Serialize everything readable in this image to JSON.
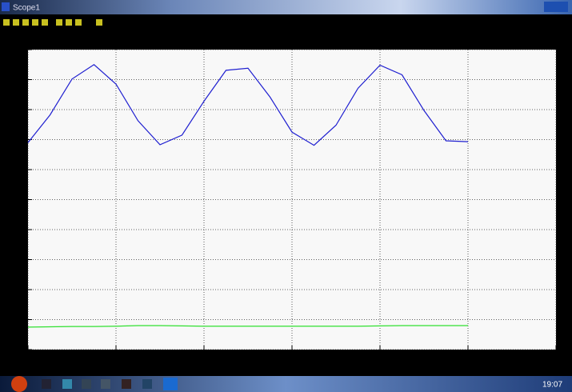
{
  "window": {
    "title": "Scope1"
  },
  "taskbar": {
    "clock": "19:07"
  },
  "chart_data": {
    "type": "line",
    "x": [
      0,
      0.25,
      0.5,
      0.75,
      1,
      1.25,
      1.5,
      1.75,
      2,
      2.25,
      2.5,
      2.75,
      3,
      3.25,
      3.5,
      3.75,
      4,
      4.25,
      4.5,
      4.75,
      5
    ],
    "series": [
      {
        "color": "#2020d0",
        "values": [
          6.9,
          7.82,
          9.02,
          9.5,
          8.85,
          7.63,
          6.83,
          7.15,
          8.28,
          9.31,
          9.38,
          8.42,
          7.25,
          6.81,
          7.48,
          8.71,
          9.48,
          9.16,
          7.97,
          6.96,
          6.93
        ]
      },
      {
        "color": "#30e030",
        "values": [
          0.75,
          0.76,
          0.77,
          0.77,
          0.78,
          0.8,
          0.8,
          0.79,
          0.78,
          0.78,
          0.78,
          0.78,
          0.78,
          0.78,
          0.78,
          0.78,
          0.79,
          0.8,
          0.8,
          0.8,
          0.8
        ]
      }
    ],
    "xlim": [
      0,
      6
    ],
    "xticks": [
      0,
      1,
      2,
      3,
      4,
      5,
      6
    ],
    "ylim": [
      0,
      10
    ],
    "yticks": [
      0,
      1,
      2,
      3,
      4,
      5,
      6,
      7,
      8,
      9,
      10
    ],
    "grid": true
  }
}
